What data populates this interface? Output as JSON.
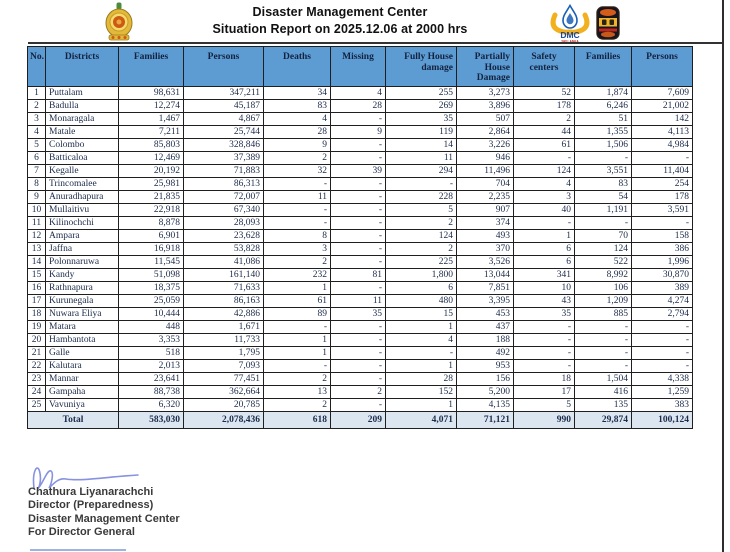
{
  "header": {
    "title_line1": "Disaster Management Center",
    "title_line2": "Situation Report on 2025.12.06 at 2000 hrs"
  },
  "logos": {
    "left": "sri-lanka-national-emblem",
    "dmc_text": "DMC",
    "dmc_subtext": "SRI LANKA",
    "right": "ministry-badge"
  },
  "table": {
    "columns": [
      "No.",
      "Districts",
      "Families",
      "Persons",
      "Deaths",
      "Missing",
      "Fully House damage",
      "Partially House Damage",
      "Safety centers",
      "Families",
      "Persons"
    ],
    "rows": [
      [
        "1",
        "Puttalam",
        "98,631",
        "347,211",
        "34",
        "4",
        "255",
        "3,273",
        "52",
        "1,874",
        "7,609"
      ],
      [
        "2",
        "Badulla",
        "12,274",
        "45,187",
        "83",
        "28",
        "269",
        "3,896",
        "178",
        "6,246",
        "21,002"
      ],
      [
        "3",
        "Monaragala",
        "1,467",
        "4,867",
        "4",
        "-",
        "35",
        "507",
        "2",
        "51",
        "142"
      ],
      [
        "4",
        "Matale",
        "7,211",
        "25,744",
        "28",
        "9",
        "119",
        "2,864",
        "44",
        "1,355",
        "4,113"
      ],
      [
        "5",
        "Colombo",
        "85,803",
        "328,846",
        "9",
        "-",
        "14",
        "3,226",
        "61",
        "1,506",
        "4,984"
      ],
      [
        "6",
        "Batticaloa",
        "12,469",
        "37,389",
        "2",
        "-",
        "11",
        "946",
        "-",
        "-",
        "-"
      ],
      [
        "7",
        "Kegalle",
        "20,192",
        "71,883",
        "32",
        "39",
        "294",
        "11,496",
        "124",
        "3,551",
        "11,404"
      ],
      [
        "8",
        "Trincomalee",
        "25,981",
        "86,313",
        "-",
        "-",
        "-",
        "704",
        "4",
        "83",
        "254"
      ],
      [
        "9",
        "Anuradhapura",
        "21,835",
        "72,007",
        "11",
        "-",
        "228",
        "2,235",
        "3",
        "54",
        "178"
      ],
      [
        "10",
        "Mullaitivu",
        "22,918",
        "67,340",
        "-",
        "-",
        "5",
        "907",
        "40",
        "1,191",
        "3,591"
      ],
      [
        "11",
        "Kilinochchi",
        "8,878",
        "28,093",
        "-",
        "-",
        "2",
        "374",
        "-",
        "-",
        "-"
      ],
      [
        "12",
        "Ampara",
        "6,901",
        "23,628",
        "8",
        "-",
        "124",
        "493",
        "1",
        "70",
        "158"
      ],
      [
        "13",
        "Jaffna",
        "16,918",
        "53,828",
        "3",
        "-",
        "2",
        "370",
        "6",
        "124",
        "386"
      ],
      [
        "14",
        "Polonnaruwa",
        "11,545",
        "41,086",
        "2",
        "-",
        "225",
        "3,526",
        "6",
        "522",
        "1,996"
      ],
      [
        "15",
        "Kandy",
        "51,098",
        "161,140",
        "232",
        "81",
        "1,800",
        "13,044",
        "341",
        "8,992",
        "30,870"
      ],
      [
        "16",
        "Rathnapura",
        "18,375",
        "71,633",
        "1",
        "-",
        "6",
        "7,851",
        "10",
        "106",
        "389"
      ],
      [
        "17",
        "Kurunegala",
        "25,059",
        "86,163",
        "61",
        "11",
        "480",
        "3,395",
        "43",
        "1,209",
        "4,274"
      ],
      [
        "18",
        "Nuwara Eliya",
        "10,444",
        "42,886",
        "89",
        "35",
        "15",
        "453",
        "35",
        "885",
        "2,794"
      ],
      [
        "19",
        "Matara",
        "448",
        "1,671",
        "-",
        "-",
        "1",
        "437",
        "-",
        "-",
        "-"
      ],
      [
        "20",
        "Hambantota",
        "3,353",
        "11,733",
        "1",
        "-",
        "4",
        "188",
        "-",
        "-",
        "-"
      ],
      [
        "21",
        "Galle",
        "518",
        "1,795",
        "1",
        "-",
        "-",
        "492",
        "-",
        "-",
        "-"
      ],
      [
        "22",
        "Kalutara",
        "2,013",
        "7,093",
        "-",
        "-",
        "1",
        "953",
        "-",
        "-",
        "-"
      ],
      [
        "23",
        "Mannar",
        "23,641",
        "77,451",
        "2",
        "-",
        "28",
        "156",
        "18",
        "1,504",
        "4,338"
      ],
      [
        "24",
        "Gampaha",
        "88,738",
        "362,664",
        "13",
        "2",
        "152",
        "5,200",
        "17",
        "416",
        "1,259"
      ],
      [
        "25",
        "Vavuniya",
        "6,320",
        "20,785",
        "2",
        "-",
        "1",
        "4,135",
        "5",
        "135",
        "383"
      ]
    ],
    "total_label": "Total",
    "total": [
      "583,030",
      "2,078,436",
      "618",
      "209",
      "4,071",
      "71,121",
      "990",
      "29,874",
      "100,124"
    ]
  },
  "footer": {
    "signatory": "Chathura Liyanarachchi",
    "designation": "Director (Preparedness)",
    "organization": "Disaster Management Center",
    "on_behalf": "For Director General"
  },
  "colors": {
    "header_fill": "#5d9bd3",
    "total_row_fill": "#dce6f1",
    "table_text": "#1c2b4a",
    "signature_ink": "#7a86dd",
    "dmc_gold": "#f2b01e",
    "dmc_blue": "#1a5fb4"
  }
}
